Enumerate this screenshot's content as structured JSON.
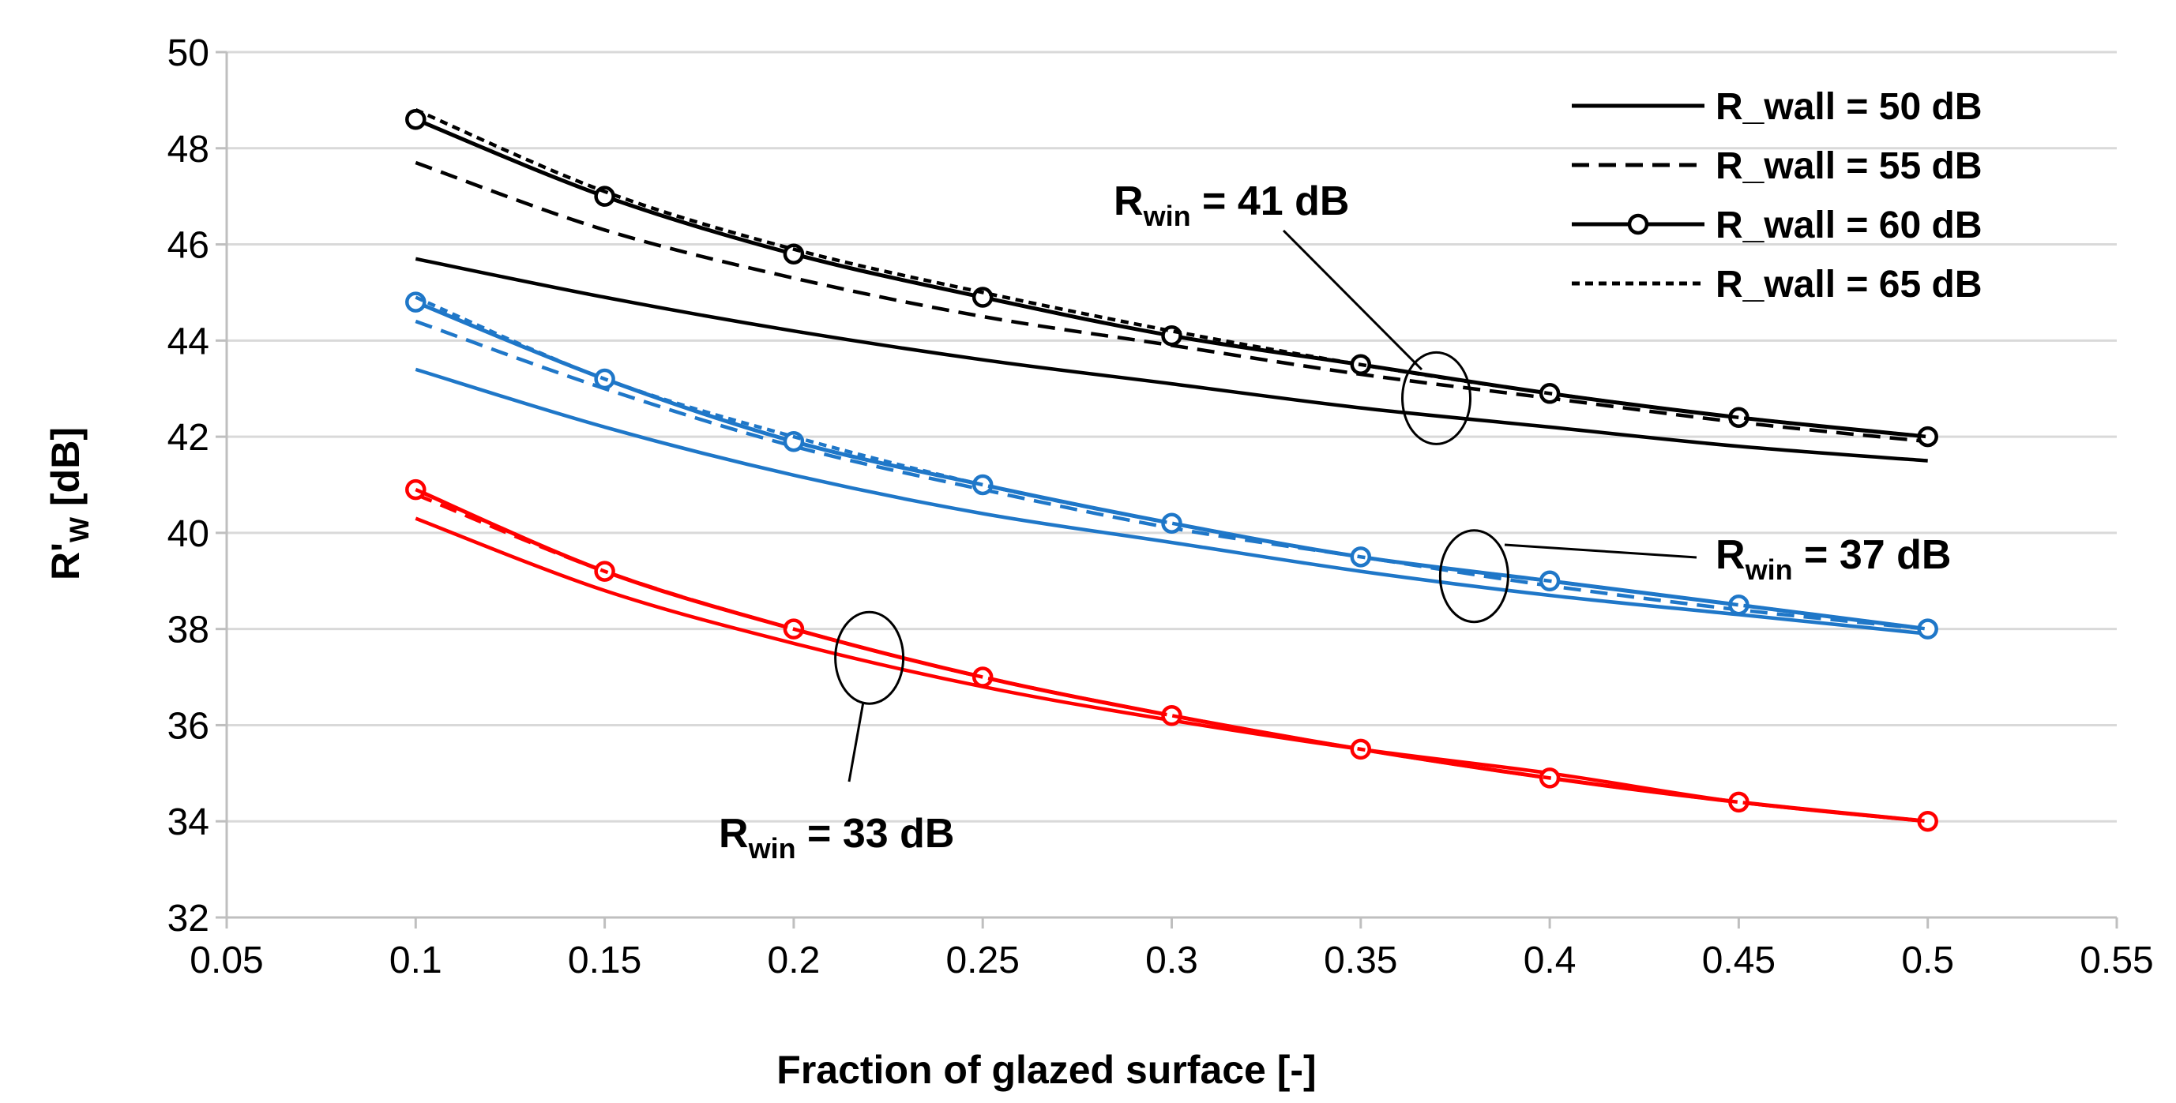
{
  "chart_data": {
    "type": "line",
    "title": "",
    "xlabel": "Fraction of glazed surface [-]",
    "ylabel": {
      "main": "R'",
      "sub": "W",
      "unit": " [dB]"
    },
    "xlim": [
      0.05,
      0.55
    ],
    "ylim": [
      32,
      50
    ],
    "x_ticks": [
      "0.05",
      "0.1",
      "0.15",
      "0.2",
      "0.25",
      "0.3",
      "0.35",
      "0.4",
      "0.45",
      "0.5",
      "0.55"
    ],
    "x_tick_values": [
      0.05,
      0.1,
      0.15,
      0.2,
      0.25,
      0.3,
      0.35,
      0.4,
      0.45,
      0.5,
      0.55
    ],
    "y_ticks": [
      "32",
      "34",
      "36",
      "38",
      "40",
      "42",
      "44",
      "46",
      "48",
      "50"
    ],
    "y_tick_values": [
      32,
      34,
      36,
      38,
      40,
      42,
      44,
      46,
      48,
      50
    ],
    "grid": "horizontal",
    "legend_position": "top-right",
    "legend": [
      {
        "label": "R_wall = 50 dB",
        "style": "solid"
      },
      {
        "label": "R_wall = 55 dB",
        "style": "dashed"
      },
      {
        "label": "R_wall = 60 dB",
        "style": "solid-circles"
      },
      {
        "label": "R_wall = 65 dB",
        "style": "short-dashed"
      }
    ],
    "x": [
      0.1,
      0.15,
      0.2,
      0.25,
      0.3,
      0.35,
      0.4,
      0.45,
      0.5
    ],
    "groups": [
      {
        "name": "R_win = 41 dB",
        "color": "#000000",
        "series": [
          {
            "name": "R_wall = 50 dB",
            "style": "solid",
            "values": [
              45.7,
              44.9,
              44.2,
              43.6,
              43.1,
              42.6,
              42.2,
              41.8,
              41.5
            ]
          },
          {
            "name": "R_wall = 55 dB",
            "style": "dashed",
            "values": [
              47.7,
              46.3,
              45.3,
              44.5,
              43.9,
              43.3,
              42.8,
              42.3,
              41.9
            ]
          },
          {
            "name": "R_wall = 60 dB",
            "style": "solid-circles",
            "values": [
              48.6,
              47.0,
              45.8,
              44.9,
              44.1,
              43.5,
              42.9,
              42.4,
              42.0
            ]
          },
          {
            "name": "R_wall = 65 dB",
            "style": "short-dashed",
            "values": [
              48.8,
              47.1,
              45.9,
              45.0,
              44.2,
              43.5,
              42.9,
              42.4,
              42.0
            ]
          }
        ]
      },
      {
        "name": "R_win = 37 dB",
        "color": "#1f77c8",
        "series": [
          {
            "name": "R_wall = 50 dB",
            "style": "solid",
            "values": [
              43.4,
              42.2,
              41.2,
              40.4,
              39.8,
              39.2,
              38.7,
              38.3,
              37.9
            ]
          },
          {
            "name": "R_wall = 55 dB",
            "style": "dashed",
            "values": [
              44.4,
              43.0,
              41.8,
              40.9,
              40.1,
              39.5,
              38.9,
              38.4,
              38.0
            ]
          },
          {
            "name": "R_wall = 60 dB",
            "style": "solid-circles",
            "values": [
              44.8,
              43.2,
              41.9,
              41.0,
              40.2,
              39.5,
              39.0,
              38.5,
              38.0
            ]
          },
          {
            "name": "R_wall = 65 dB",
            "style": "short-dashed",
            "values": [
              44.9,
              43.2,
              42.0,
              41.0,
              40.2,
              39.5,
              39.0,
              38.5,
              38.0
            ]
          }
        ]
      },
      {
        "name": "R_win = 33 dB",
        "color": "#ff0000",
        "series": [
          {
            "name": "R_wall = 50 dB",
            "style": "solid",
            "values": [
              40.3,
              38.8,
              37.7,
              36.8,
              36.1,
              35.5,
              35.0,
              34.4,
              34.0
            ]
          },
          {
            "name": "R_wall = 55 dB",
            "style": "dashed",
            "values": [
              40.8,
              39.2,
              38.0,
              37.0,
              36.2,
              35.5,
              34.9,
              34.4,
              34.0
            ]
          },
          {
            "name": "R_wall = 60 dB",
            "style": "solid-circles",
            "values": [
              40.9,
              39.2,
              38.0,
              37.0,
              36.2,
              35.5,
              34.9,
              34.4,
              34.0
            ]
          },
          {
            "name": "R_wall = 65 dB",
            "style": "short-dashed",
            "values": [
              40.9,
              39.2,
              38.0,
              37.0,
              36.2,
              35.5,
              34.9,
              34.4,
              34.0
            ]
          }
        ]
      }
    ],
    "annotations": [
      {
        "main": "R",
        "sub": "win",
        "rest": " = 41 dB",
        "group": 0,
        "ellipse_center": [
          0.37,
          42.8
        ]
      },
      {
        "main": "R",
        "sub": "win",
        "rest": " = 37 dB",
        "group": 1,
        "ellipse_center": [
          0.38,
          39.1
        ]
      },
      {
        "main": "R",
        "sub": "win",
        "rest": " = 33 dB",
        "group": 2,
        "ellipse_center": [
          0.22,
          37.4
        ]
      }
    ]
  }
}
